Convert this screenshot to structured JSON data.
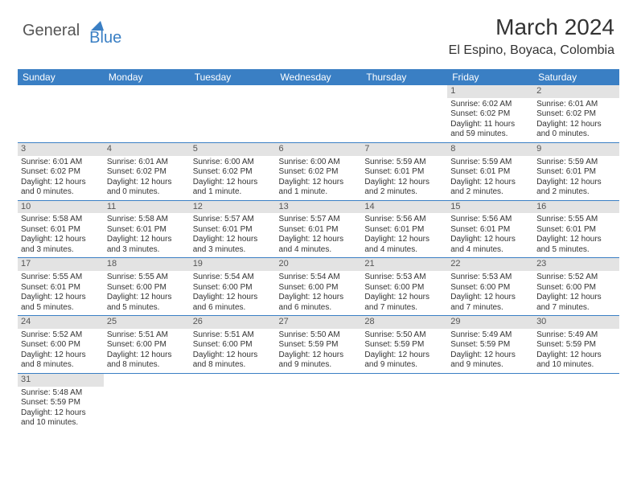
{
  "logo": {
    "part1": "General",
    "part2": "Blue"
  },
  "title": "March 2024",
  "location": "El Espino, Boyaca, Colombia",
  "colors": {
    "header_bg": "#3a7fc4",
    "header_fg": "#ffffff",
    "daynum_bg": "#e3e3e3",
    "text": "#333333",
    "row_border": "#3a7fc4"
  },
  "weekdays": [
    "Sunday",
    "Monday",
    "Tuesday",
    "Wednesday",
    "Thursday",
    "Friday",
    "Saturday"
  ],
  "weeks": [
    [
      null,
      null,
      null,
      null,
      null,
      {
        "n": "1",
        "sunrise": "Sunrise: 6:02 AM",
        "sunset": "Sunset: 6:02 PM",
        "day1": "Daylight: 11 hours",
        "day2": "and 59 minutes."
      },
      {
        "n": "2",
        "sunrise": "Sunrise: 6:01 AM",
        "sunset": "Sunset: 6:02 PM",
        "day1": "Daylight: 12 hours",
        "day2": "and 0 minutes."
      }
    ],
    [
      {
        "n": "3",
        "sunrise": "Sunrise: 6:01 AM",
        "sunset": "Sunset: 6:02 PM",
        "day1": "Daylight: 12 hours",
        "day2": "and 0 minutes."
      },
      {
        "n": "4",
        "sunrise": "Sunrise: 6:01 AM",
        "sunset": "Sunset: 6:02 PM",
        "day1": "Daylight: 12 hours",
        "day2": "and 0 minutes."
      },
      {
        "n": "5",
        "sunrise": "Sunrise: 6:00 AM",
        "sunset": "Sunset: 6:02 PM",
        "day1": "Daylight: 12 hours",
        "day2": "and 1 minute."
      },
      {
        "n": "6",
        "sunrise": "Sunrise: 6:00 AM",
        "sunset": "Sunset: 6:02 PM",
        "day1": "Daylight: 12 hours",
        "day2": "and 1 minute."
      },
      {
        "n": "7",
        "sunrise": "Sunrise: 5:59 AM",
        "sunset": "Sunset: 6:01 PM",
        "day1": "Daylight: 12 hours",
        "day2": "and 2 minutes."
      },
      {
        "n": "8",
        "sunrise": "Sunrise: 5:59 AM",
        "sunset": "Sunset: 6:01 PM",
        "day1": "Daylight: 12 hours",
        "day2": "and 2 minutes."
      },
      {
        "n": "9",
        "sunrise": "Sunrise: 5:59 AM",
        "sunset": "Sunset: 6:01 PM",
        "day1": "Daylight: 12 hours",
        "day2": "and 2 minutes."
      }
    ],
    [
      {
        "n": "10",
        "sunrise": "Sunrise: 5:58 AM",
        "sunset": "Sunset: 6:01 PM",
        "day1": "Daylight: 12 hours",
        "day2": "and 3 minutes."
      },
      {
        "n": "11",
        "sunrise": "Sunrise: 5:58 AM",
        "sunset": "Sunset: 6:01 PM",
        "day1": "Daylight: 12 hours",
        "day2": "and 3 minutes."
      },
      {
        "n": "12",
        "sunrise": "Sunrise: 5:57 AM",
        "sunset": "Sunset: 6:01 PM",
        "day1": "Daylight: 12 hours",
        "day2": "and 3 minutes."
      },
      {
        "n": "13",
        "sunrise": "Sunrise: 5:57 AM",
        "sunset": "Sunset: 6:01 PM",
        "day1": "Daylight: 12 hours",
        "day2": "and 4 minutes."
      },
      {
        "n": "14",
        "sunrise": "Sunrise: 5:56 AM",
        "sunset": "Sunset: 6:01 PM",
        "day1": "Daylight: 12 hours",
        "day2": "and 4 minutes."
      },
      {
        "n": "15",
        "sunrise": "Sunrise: 5:56 AM",
        "sunset": "Sunset: 6:01 PM",
        "day1": "Daylight: 12 hours",
        "day2": "and 4 minutes."
      },
      {
        "n": "16",
        "sunrise": "Sunrise: 5:55 AM",
        "sunset": "Sunset: 6:01 PM",
        "day1": "Daylight: 12 hours",
        "day2": "and 5 minutes."
      }
    ],
    [
      {
        "n": "17",
        "sunrise": "Sunrise: 5:55 AM",
        "sunset": "Sunset: 6:01 PM",
        "day1": "Daylight: 12 hours",
        "day2": "and 5 minutes."
      },
      {
        "n": "18",
        "sunrise": "Sunrise: 5:55 AM",
        "sunset": "Sunset: 6:00 PM",
        "day1": "Daylight: 12 hours",
        "day2": "and 5 minutes."
      },
      {
        "n": "19",
        "sunrise": "Sunrise: 5:54 AM",
        "sunset": "Sunset: 6:00 PM",
        "day1": "Daylight: 12 hours",
        "day2": "and 6 minutes."
      },
      {
        "n": "20",
        "sunrise": "Sunrise: 5:54 AM",
        "sunset": "Sunset: 6:00 PM",
        "day1": "Daylight: 12 hours",
        "day2": "and 6 minutes."
      },
      {
        "n": "21",
        "sunrise": "Sunrise: 5:53 AM",
        "sunset": "Sunset: 6:00 PM",
        "day1": "Daylight: 12 hours",
        "day2": "and 7 minutes."
      },
      {
        "n": "22",
        "sunrise": "Sunrise: 5:53 AM",
        "sunset": "Sunset: 6:00 PM",
        "day1": "Daylight: 12 hours",
        "day2": "and 7 minutes."
      },
      {
        "n": "23",
        "sunrise": "Sunrise: 5:52 AM",
        "sunset": "Sunset: 6:00 PM",
        "day1": "Daylight: 12 hours",
        "day2": "and 7 minutes."
      }
    ],
    [
      {
        "n": "24",
        "sunrise": "Sunrise: 5:52 AM",
        "sunset": "Sunset: 6:00 PM",
        "day1": "Daylight: 12 hours",
        "day2": "and 8 minutes."
      },
      {
        "n": "25",
        "sunrise": "Sunrise: 5:51 AM",
        "sunset": "Sunset: 6:00 PM",
        "day1": "Daylight: 12 hours",
        "day2": "and 8 minutes."
      },
      {
        "n": "26",
        "sunrise": "Sunrise: 5:51 AM",
        "sunset": "Sunset: 6:00 PM",
        "day1": "Daylight: 12 hours",
        "day2": "and 8 minutes."
      },
      {
        "n": "27",
        "sunrise": "Sunrise: 5:50 AM",
        "sunset": "Sunset: 5:59 PM",
        "day1": "Daylight: 12 hours",
        "day2": "and 9 minutes."
      },
      {
        "n": "28",
        "sunrise": "Sunrise: 5:50 AM",
        "sunset": "Sunset: 5:59 PM",
        "day1": "Daylight: 12 hours",
        "day2": "and 9 minutes."
      },
      {
        "n": "29",
        "sunrise": "Sunrise: 5:49 AM",
        "sunset": "Sunset: 5:59 PM",
        "day1": "Daylight: 12 hours",
        "day2": "and 9 minutes."
      },
      {
        "n": "30",
        "sunrise": "Sunrise: 5:49 AM",
        "sunset": "Sunset: 5:59 PM",
        "day1": "Daylight: 12 hours",
        "day2": "and 10 minutes."
      }
    ],
    [
      {
        "n": "31",
        "sunrise": "Sunrise: 5:48 AM",
        "sunset": "Sunset: 5:59 PM",
        "day1": "Daylight: 12 hours",
        "day2": "and 10 minutes."
      },
      null,
      null,
      null,
      null,
      null,
      null
    ]
  ]
}
